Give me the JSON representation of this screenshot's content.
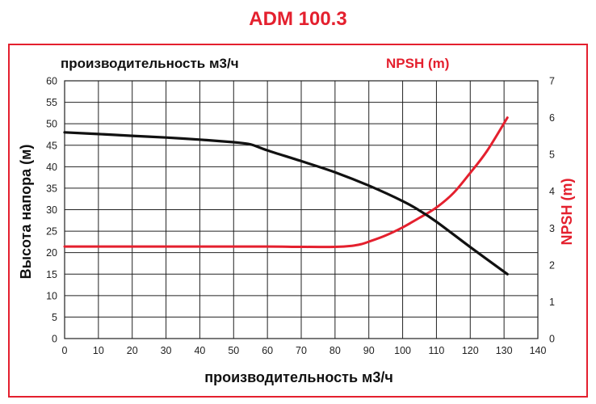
{
  "title": "ADM 100.3",
  "top_left_label": "производительность м3/ч",
  "top_right_label": "NPSH (m)",
  "colors": {
    "accent": "#e4202e",
    "head_curve": "#111111",
    "grid": "#222222"
  },
  "chart_data": {
    "type": "line",
    "title": "ADM 100.3",
    "xlabel": "производительность м3/ч",
    "ylabel": "Высота напора (м)",
    "y2label": "NPSH (m)",
    "xlim": [
      0,
      140
    ],
    "ylim": [
      0,
      60
    ],
    "y2lim": [
      0,
      7
    ],
    "grid": true,
    "x_ticks": [
      "0",
      "10",
      "20",
      "30",
      "40",
      "50",
      "60",
      "70",
      "80",
      "90",
      "100",
      "110",
      "120",
      "130",
      "140"
    ],
    "y_ticks": [
      "0",
      "5",
      "10",
      "15",
      "20",
      "25",
      "30",
      "35",
      "40",
      "45",
      "50",
      "55",
      "60"
    ],
    "y2_ticks": [
      "0",
      "1",
      "2",
      "3",
      "4",
      "5",
      "6",
      "7"
    ],
    "series": [
      {
        "axis": "left",
        "x": [
          0,
          10,
          20,
          30,
          40,
          50,
          55,
          60,
          70,
          80,
          90,
          100,
          105,
          110,
          120,
          131
        ],
        "y": [
          48,
          47.6,
          47.2,
          46.8,
          46.3,
          45.7,
          45.2,
          43.8,
          41.3,
          38.7,
          35.6,
          32.0,
          29.8,
          27.2,
          21.3,
          15.0
        ]
      },
      {
        "axis": "right",
        "x": [
          0,
          20,
          40,
          60,
          70,
          80,
          85,
          88,
          90,
          95,
          100,
          105,
          110,
          115,
          120,
          125,
          131
        ],
        "y": [
          2.5,
          2.5,
          2.5,
          2.5,
          2.49,
          2.49,
          2.52,
          2.57,
          2.63,
          2.8,
          3.02,
          3.28,
          3.56,
          3.95,
          4.5,
          5.1,
          6.0
        ]
      }
    ]
  }
}
